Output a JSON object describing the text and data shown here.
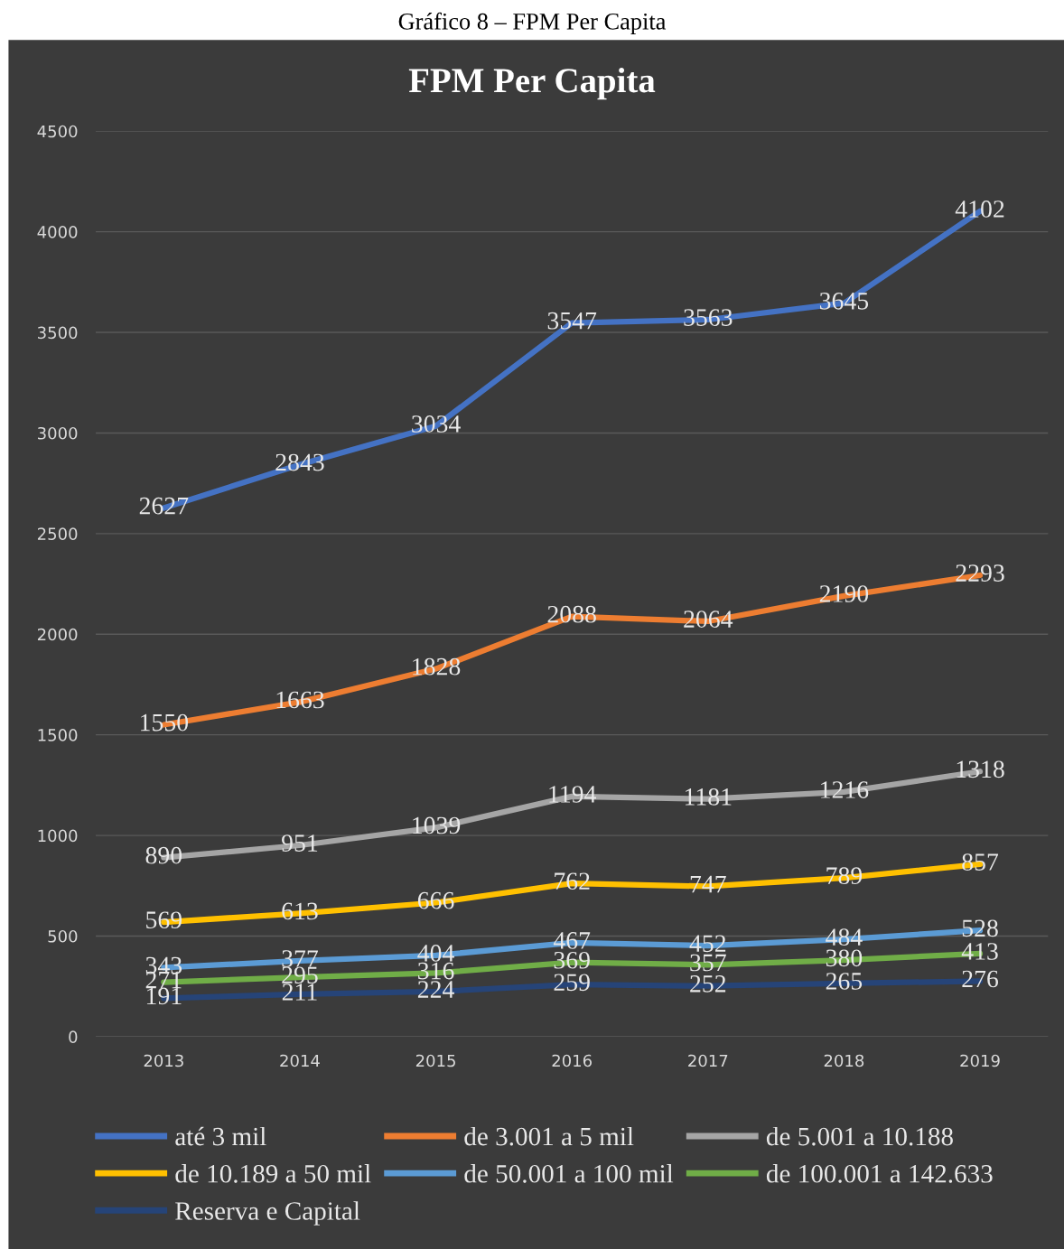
{
  "chart_data": {
    "type": "line",
    "title": "FPM Per Capita",
    "annotations": [
      "Gráfico 8 – FPM Per Capita"
    ],
    "categories": [
      "2013",
      "2014",
      "2015",
      "2016",
      "2017",
      "2018",
      "2019"
    ],
    "series": [
      {
        "name": "até 3 mil",
        "color": "#4472c4",
        "values": [
          2627,
          2843,
          3034,
          3547,
          3563,
          3645,
          4102
        ]
      },
      {
        "name": "de 3.001 a 5 mil",
        "color": "#ed7d31",
        "values": [
          1550,
          1663,
          1828,
          2088,
          2064,
          2190,
          2293
        ]
      },
      {
        "name": "de 5.001 a 10.188",
        "color": "#a5a5a5",
        "values": [
          890,
          951,
          1039,
          1194,
          1181,
          1216,
          1318
        ]
      },
      {
        "name": "de 10.189 a 50 mil",
        "color": "#ffc000",
        "values": [
          569,
          613,
          666,
          762,
          747,
          789,
          857
        ]
      },
      {
        "name": "de 50.001 a 100 mil",
        "color": "#5b9bd5",
        "values": [
          343,
          377,
          404,
          467,
          452,
          484,
          528
        ]
      },
      {
        "name": "de 100.001 a 142.633",
        "color": "#70ad47",
        "values": [
          271,
          295,
          316,
          369,
          357,
          380,
          413
        ]
      },
      {
        "name": "Reserva e Capital",
        "color": "#264478",
        "values": [
          191,
          211,
          224,
          259,
          252,
          265,
          276
        ]
      }
    ],
    "ylim": [
      0,
      4500
    ],
    "yticks": [
      0,
      500,
      1000,
      1500,
      2000,
      2500,
      3000,
      3500,
      4000,
      4500
    ],
    "grid": "y",
    "legend": "bottom",
    "data_labels": true,
    "marker": "none",
    "line_style": "solid"
  }
}
